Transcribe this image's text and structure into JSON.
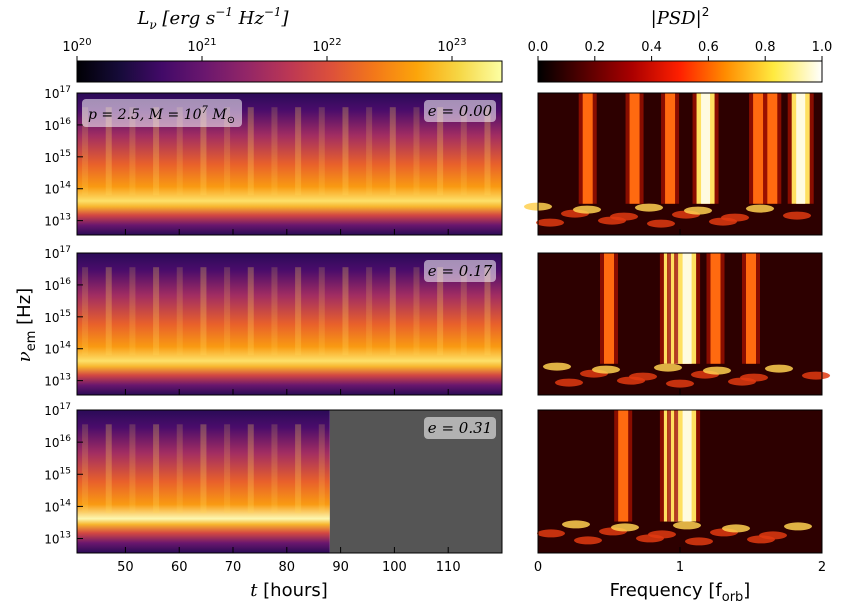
{
  "chart_data": {
    "type": "heatmap",
    "colorbars": [
      {
        "label_main": "L",
        "label_sub": "ν",
        "label_units": "[erg s",
        "label_units2": "Hz",
        "label_close": "]",
        "label_exp": "−1",
        "scale": "log",
        "colormap": "inferno",
        "ticks": [
          {
            "base": "10",
            "exp": "20",
            "value": 20
          },
          {
            "base": "10",
            "exp": "21",
            "value": 21
          },
          {
            "base": "10",
            "exp": "22",
            "value": 22
          },
          {
            "base": "10",
            "exp": "23",
            "value": 23
          }
        ],
        "range_log10": [
          20,
          23.4
        ]
      },
      {
        "label": "|PSD|",
        "label_exp": "2",
        "scale": "linear",
        "colormap": "afmhot",
        "ticks": [
          "0.0",
          "0.2",
          "0.4",
          "0.6",
          "0.8",
          "1.0"
        ],
        "range": [
          0,
          1
        ]
      }
    ],
    "left_panels": {
      "xlabel": "t",
      "xlabel_units": "[hours]",
      "ylabel": "ν",
      "ylabel_sub": "em",
      "ylabel_units": "[Hz]",
      "xlim": [
        41,
        120
      ],
      "xticks": [
        "50",
        "60",
        "70",
        "80",
        "90",
        "100",
        "110"
      ],
      "ylim_log10": [
        12.55,
        17
      ],
      "yticks": [
        {
          "base": "10",
          "exp": "17",
          "value": 17
        },
        {
          "base": "10",
          "exp": "16",
          "value": 16
        },
        {
          "base": "10",
          "exp": "15",
          "value": 15
        },
        {
          "base": "10",
          "exp": "14",
          "value": 14
        },
        {
          "base": "10",
          "exp": "13",
          "value": 13
        }
      ]
    },
    "right_panels": {
      "xlabel": "Frequency [f",
      "xlabel_sub": "orb",
      "xlabel_close": "]",
      "xlim": [
        0,
        2
      ],
      "xticks": [
        "0",
        "1",
        "2"
      ]
    },
    "annotation": {
      "p_text": "p = 2.5, M = 10",
      "exp": "7",
      "msun": "M",
      "msun_sub": "⊙"
    },
    "panels": [
      {
        "name": "e = 0.00",
        "eccentricity": 0.0,
        "data_end_t": 120,
        "psd_peaks_forb": [
          0.35,
          0.68,
          0.93,
          1.18,
          1.55,
          1.65,
          1.85
        ]
      },
      {
        "name": "e = 0.17",
        "eccentricity": 0.17,
        "data_end_t": 120,
        "psd_peaks_forb": [
          0.5,
          0.95,
          1.0,
          1.05,
          1.25,
          1.5
        ]
      },
      {
        "name": "e = 0.31",
        "eccentricity": 0.31,
        "data_end_t": 88,
        "psd_peaks_forb": [
          0.6,
          0.95,
          1.0,
          1.05
        ]
      }
    ]
  }
}
